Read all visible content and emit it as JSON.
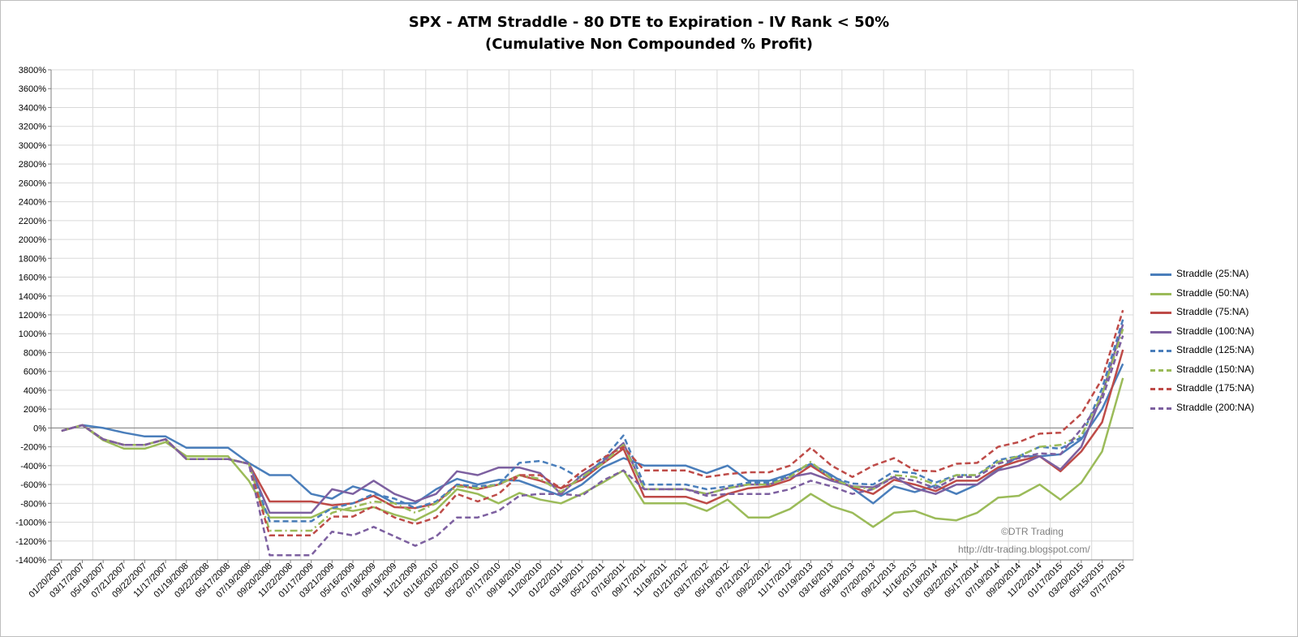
{
  "chart_data": {
    "type": "line",
    "title": "SPX - ATM Straddle - 80 DTE to Expiration - IV Rank < 50%",
    "subtitle": "(Cumulative Non Compounded % Profit)",
    "xlabel": "",
    "ylabel": "",
    "ylim": [
      -1400,
      3800
    ],
    "y_tick_step": 200,
    "y_tick_format": "percent",
    "grid": true,
    "legend": "right",
    "categories": [
      "01/20/2007",
      "03/17/2007",
      "05/19/2007",
      "07/21/2007",
      "09/22/2007",
      "11/17/2007",
      "01/19/2008",
      "03/22/2008",
      "05/17/2008",
      "07/19/2008",
      "09/20/2008",
      "11/22/2008",
      "01/17/2009",
      "03/21/2009",
      "05/16/2009",
      "07/18/2009",
      "09/19/2009",
      "11/21/2009",
      "01/16/2010",
      "03/20/2010",
      "05/22/2010",
      "07/17/2010",
      "09/18/2010",
      "11/20/2010",
      "01/22/2011",
      "03/19/2011",
      "05/21/2011",
      "07/16/2011",
      "09/17/2011",
      "11/19/2011",
      "01/21/2012",
      "03/17/2012",
      "05/19/2012",
      "07/21/2012",
      "09/22/2012",
      "11/17/2012",
      "01/19/2013",
      "03/16/2013",
      "05/18/2013",
      "07/20/2013",
      "09/21/2013",
      "11/16/2013",
      "01/18/2014",
      "03/22/2014",
      "05/17/2014",
      "07/19/2014",
      "09/20/2014",
      "11/22/2014",
      "01/17/2015",
      "03/20/2015",
      "05/15/2015",
      "07/17/2015"
    ],
    "series": [
      {
        "name": "Straddle  (25:NA)",
        "color": "#4a7ebb",
        "dash": "solid",
        "values": [
          -30,
          30,
          0,
          -50,
          -90,
          -90,
          -210,
          -210,
          -210,
          -370,
          -500,
          -500,
          -700,
          -750,
          -620,
          -680,
          -800,
          -800,
          -650,
          -540,
          -600,
          -550,
          -560,
          -640,
          -720,
          -600,
          -420,
          -320,
          -400,
          -400,
          -400,
          -480,
          -400,
          -560,
          -560,
          -490,
          -380,
          -500,
          -640,
          -800,
          -620,
          -680,
          -610,
          -700,
          -600,
          -440,
          -300,
          -300,
          -280,
          -120,
          200,
          680
        ]
      },
      {
        "name": "Straddle  (50:NA)",
        "color": "#9bbb59",
        "dash": "solid",
        "values": [
          -30,
          30,
          -130,
          -220,
          -220,
          -150,
          -300,
          -300,
          -300,
          -560,
          -950,
          -950,
          -950,
          -850,
          -880,
          -840,
          -920,
          -980,
          -870,
          -650,
          -700,
          -800,
          -690,
          -760,
          -800,
          -700,
          -580,
          -450,
          -800,
          -800,
          -800,
          -880,
          -760,
          -950,
          -950,
          -860,
          -700,
          -830,
          -900,
          -1050,
          -900,
          -880,
          -960,
          -980,
          -900,
          -740,
          -720,
          -600,
          -760,
          -580,
          -250,
          530
        ]
      },
      {
        "name": "Straddle  (75:NA)",
        "color": "#be4b48",
        "dash": "solid",
        "values": [
          -30,
          30,
          -120,
          -180,
          -180,
          -120,
          -330,
          -330,
          -330,
          -380,
          -780,
          -780,
          -780,
          -820,
          -800,
          -720,
          -840,
          -850,
          -800,
          -600,
          -650,
          -600,
          -500,
          -560,
          -640,
          -550,
          -380,
          -220,
          -730,
          -730,
          -730,
          -800,
          -700,
          -640,
          -620,
          -550,
          -400,
          -540,
          -630,
          -700,
          -550,
          -600,
          -670,
          -560,
          -560,
          -420,
          -350,
          -300,
          -460,
          -250,
          60,
          830
        ]
      },
      {
        "name": "Straddle  (100:NA)",
        "color": "#7d60a0",
        "dash": "solid",
        "values": [
          -30,
          30,
          -120,
          -180,
          -180,
          -120,
          -330,
          -330,
          -330,
          -380,
          -900,
          -900,
          -900,
          -650,
          -700,
          -560,
          -700,
          -780,
          -700,
          -460,
          -500,
          -420,
          -420,
          -480,
          -700,
          -500,
          -360,
          -160,
          -650,
          -650,
          -650,
          -700,
          -640,
          -600,
          -600,
          -520,
          -480,
          -560,
          -620,
          -630,
          -520,
          -640,
          -700,
          -600,
          -600,
          -450,
          -400,
          -300,
          -440,
          -200,
          350,
          1100
        ]
      },
      {
        "name": "Straddle  (125:NA)",
        "color": "#4a7ebb",
        "dash": "dash",
        "values": [
          -30,
          30,
          -120,
          -180,
          -180,
          -120,
          -330,
          -330,
          -330,
          -380,
          -990,
          -990,
          -990,
          -850,
          -800,
          -700,
          -750,
          -850,
          -780,
          -600,
          -620,
          -600,
          -370,
          -350,
          -420,
          -540,
          -340,
          -80,
          -600,
          -600,
          -600,
          -650,
          -620,
          -580,
          -580,
          -500,
          -380,
          -520,
          -590,
          -600,
          -460,
          -480,
          -580,
          -500,
          -500,
          -340,
          -300,
          -200,
          -220,
          -100,
          420,
          1150
        ]
      },
      {
        "name": "Straddle  (150:NA)",
        "color": "#9bbb59",
        "dash": "dashdot",
        "values": [
          -30,
          30,
          -120,
          -180,
          -180,
          -120,
          -330,
          -330,
          -330,
          -380,
          -1090,
          -1090,
          -1090,
          -900,
          -840,
          -780,
          -800,
          -900,
          -800,
          -620,
          -640,
          -600,
          -500,
          -540,
          -680,
          -520,
          -380,
          -180,
          -650,
          -650,
          -650,
          -700,
          -640,
          -600,
          -600,
          -520,
          -360,
          -540,
          -620,
          -650,
          -500,
          -520,
          -600,
          -500,
          -500,
          -360,
          -300,
          -200,
          -180,
          -80,
          350,
          1050
        ]
      },
      {
        "name": "Straddle  (175:NA)",
        "color": "#be4b48",
        "dash": "dash",
        "values": [
          -30,
          30,
          -120,
          -180,
          -180,
          -120,
          -330,
          -330,
          -330,
          -380,
          -1140,
          -1140,
          -1140,
          -940,
          -940,
          -830,
          -950,
          -1020,
          -950,
          -700,
          -780,
          -700,
          -500,
          -500,
          -640,
          -460,
          -320,
          -200,
          -450,
          -450,
          -450,
          -520,
          -490,
          -470,
          -470,
          -400,
          -210,
          -400,
          -520,
          -400,
          -320,
          -450,
          -460,
          -380,
          -370,
          -200,
          -150,
          -60,
          -50,
          150,
          520,
          1250
        ]
      },
      {
        "name": "Straddle  (200:NA)",
        "color": "#7d60a0",
        "dash": "dash",
        "values": [
          -30,
          30,
          -120,
          -180,
          -180,
          -120,
          -330,
          -330,
          -330,
          -380,
          -1350,
          -1350,
          -1350,
          -1100,
          -1140,
          -1050,
          -1150,
          -1250,
          -1150,
          -950,
          -950,
          -880,
          -720,
          -700,
          -700,
          -720,
          -560,
          -450,
          -650,
          -650,
          -650,
          -720,
          -700,
          -700,
          -700,
          -650,
          -560,
          -620,
          -700,
          -650,
          -520,
          -560,
          -640,
          -520,
          -520,
          -380,
          -320,
          -270,
          -280,
          -10,
          300,
          980
        ]
      }
    ]
  },
  "watermark": "©DTR Trading",
  "url": "http://dtr-trading.blogspot.com/"
}
